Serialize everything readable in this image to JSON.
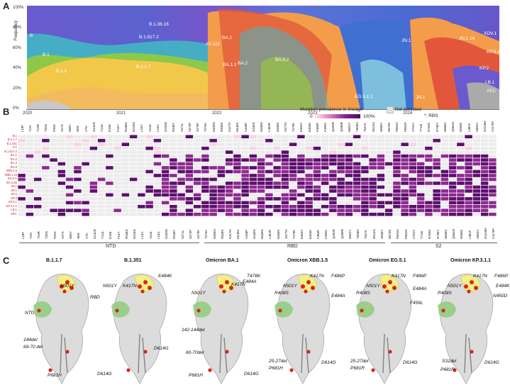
{
  "panel_a": {
    "letter": "A",
    "ylabel": "Frequency",
    "yticks": [
      "0%",
      "20%",
      "40%",
      "60%",
      "80%",
      "100%"
    ],
    "xticks": [
      "2020",
      "2021",
      "2022",
      "2023",
      "2024"
    ],
    "stream_labels": [
      "B",
      "B.1",
      "B.1.1",
      "B.1.36.16",
      "B.1.617.2",
      "B.1.1.7",
      "AY.122",
      "BA.1",
      "BA.1.1",
      "BA.2",
      "BA.5.2",
      "EG.5.1.1",
      "JN.1",
      "JN.1",
      "JN.1.16",
      "XDV.1",
      "KP.3.1",
      "KP.2",
      "LB.1",
      "XEC"
    ],
    "colors": {
      "purple": "#6a5acd",
      "blue": "#3f6fd1",
      "teal": "#41b6c4",
      "green": "#9acd32",
      "yellow": "#f2c84b",
      "orange": "#f39c4a",
      "red": "#e2573b",
      "grey": "#c8c8c8"
    }
  },
  "panel_b": {
    "letter": "B",
    "legend_title": "Mutation prevalence in lineage",
    "legend_min": "0",
    "legend_max": "100%",
    "not_detected": "Not detected",
    "rbs_note": "*: RBS",
    "lineages": [
      "B.1",
      "B.1.1.7",
      "B.1.351",
      "P.1",
      "B.1.617.2",
      "BA.1",
      "BA.2",
      "BA.4",
      "BA.5",
      "XBB.1.5",
      "XBB.1.16",
      "EG.5.1",
      "BA.2.86",
      "JN.1",
      "KP.1",
      "KP.2",
      "KP.3",
      "KP.3.1",
      "KP.3.1.1",
      "LB.1",
      "XEC"
    ],
    "mutations": [
      "L18F",
      "T19I",
      "T19R",
      "T20N",
      "P26S",
      "A27S",
      "D80Y",
      "H69-",
      "V70-",
      "G142D",
      "Y144-",
      "E156-",
      "F157-",
      "R158G",
      "D215G",
      "L242-",
      "A243-",
      "L244-",
      "G339D",
      "R346T",
      "S371L",
      "S373P",
      "S375F",
      "T376A",
      "D405N",
      "R408S",
      "K417N",
      "N440K",
      "V445P",
      "G446S",
      "N450D",
      "L452R",
      "N460K",
      "S477N",
      "T478K",
      "E484A",
      "E484K",
      "F486P",
      "F490S",
      "Q493R",
      "Q498R",
      "N501Y",
      "Y505H",
      "T547K",
      "D614G",
      "H655Y",
      "N679K",
      "P681H",
      "P681R",
      "A701V",
      "T716I",
      "N764K",
      "D796Y",
      "N856K",
      "Q954H",
      "N969K",
      "L981F",
      "S982A",
      "D1118H",
      "V1176F"
    ],
    "regions": [
      "NTD",
      "RBD",
      "S2"
    ]
  },
  "panel_c": {
    "letter": "C",
    "structures": [
      {
        "title": "B.1.1.7",
        "labels": [
          "N501Y",
          "RBD",
          "NTD",
          "144del",
          "69-70 del",
          "P681H",
          "D614G"
        ]
      },
      {
        "title": "B.1.351",
        "labels": [
          "E484K",
          "N501Y",
          "K417N",
          "D614G"
        ]
      },
      {
        "title": "Omicron BA.1",
        "labels": [
          "T478K",
          "K417N",
          "E484A",
          "N501Y",
          "142-144del",
          "60-70del",
          "P681H",
          "D614G"
        ]
      },
      {
        "title": "Omicron XBB.1.5",
        "labels": [
          "K417N",
          "F486P",
          "N501Y",
          "R408S",
          "E484A",
          "25-27del",
          "P681H",
          "D614G"
        ]
      },
      {
        "title": "Omicron EG.5.1",
        "labels": [
          "K417N",
          "F486P",
          "N501Y",
          "E484A",
          "R408S",
          "F456L",
          "25-27del",
          "P681R",
          "D614G"
        ]
      },
      {
        "title": "Omicron KP.3.1.1",
        "labels": [
          "K417N",
          "F486P",
          "N501Y",
          "E484K",
          "R408S",
          "N450D",
          "S31del",
          "P681R",
          "D614G"
        ]
      }
    ]
  }
}
